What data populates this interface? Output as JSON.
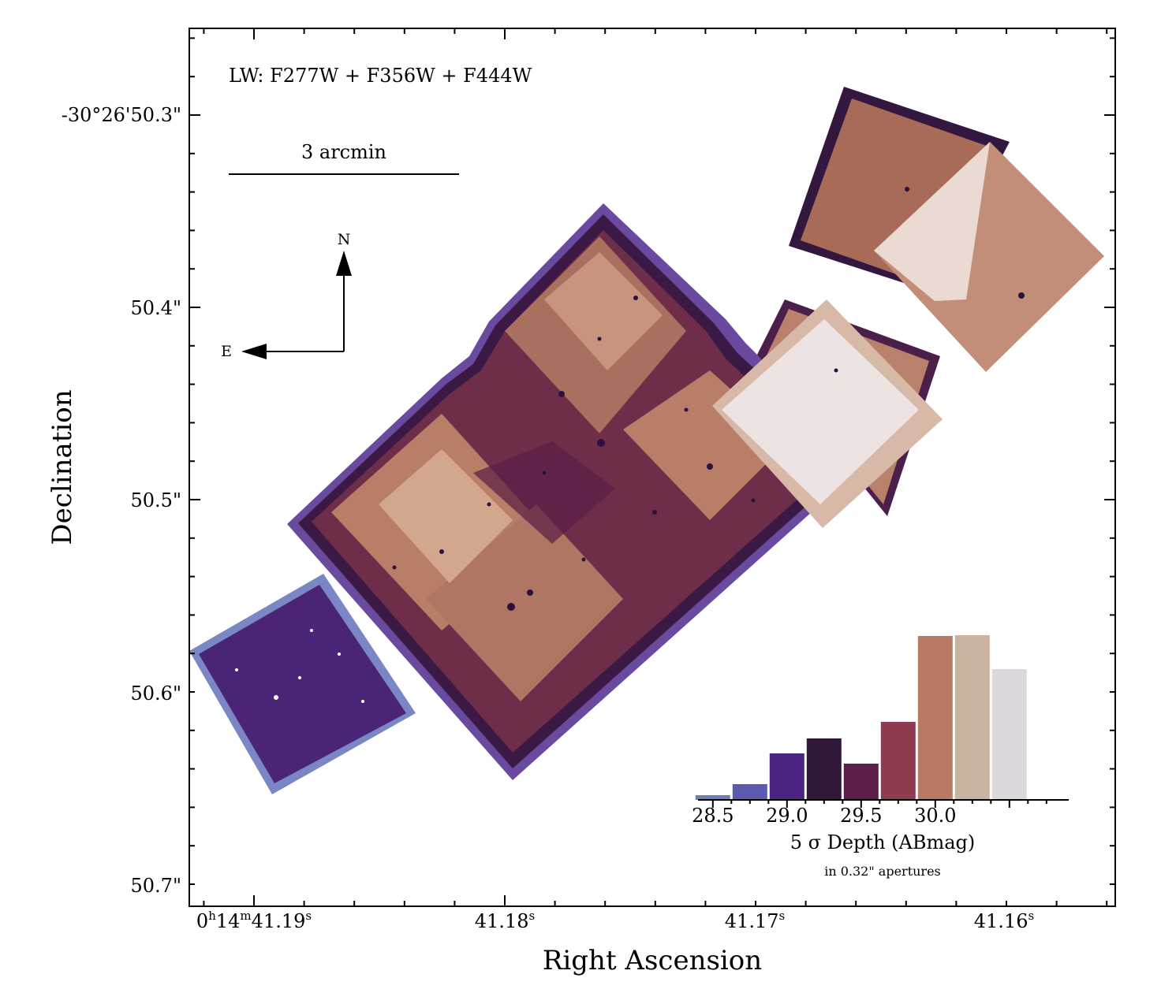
{
  "chart_data": {
    "type": "bar",
    "xlabel": "Right Ascension",
    "ylabel": "Declination",
    "x_ticks": [
      "0h14m41.19s",
      "41.18s",
      "41.17s",
      "41.16s"
    ],
    "y_ticks": [
      "-30°26'50.3\"",
      "50.4\"",
      "50.5\"",
      "50.6\"",
      "50.7\""
    ],
    "filter_label": "LW: F277W + F356W + F444W",
    "scalebar_label": "3 arcmin",
    "compass": {
      "north": "N",
      "east": "E"
    },
    "inset_histogram": {
      "xlabel": "5 σ Depth (ABmag)",
      "sublabel": "in 0.32\" apertures",
      "x_ticks": [
        "28.5",
        "29.0",
        "29.5",
        "30.0"
      ],
      "bin_centers": [
        28.5,
        28.75,
        29.0,
        29.25,
        29.5,
        29.75,
        30.0,
        30.25,
        30.5
      ],
      "values": [
        0.6,
        2.0,
        5.9,
        7.8,
        4.6,
        9.9,
        20.8,
        20.9,
        16.6
      ],
      "colors": [
        "#6b7fb8",
        "#5c5aae",
        "#4b2383",
        "#2f1838",
        "#5c1f4a",
        "#8f3c50",
        "#b87a63",
        "#cbb3a2",
        "#ddd7de"
      ],
      "xlim": [
        28.4,
        30.9
      ],
      "ylim": [
        0,
        21
      ]
    }
  }
}
